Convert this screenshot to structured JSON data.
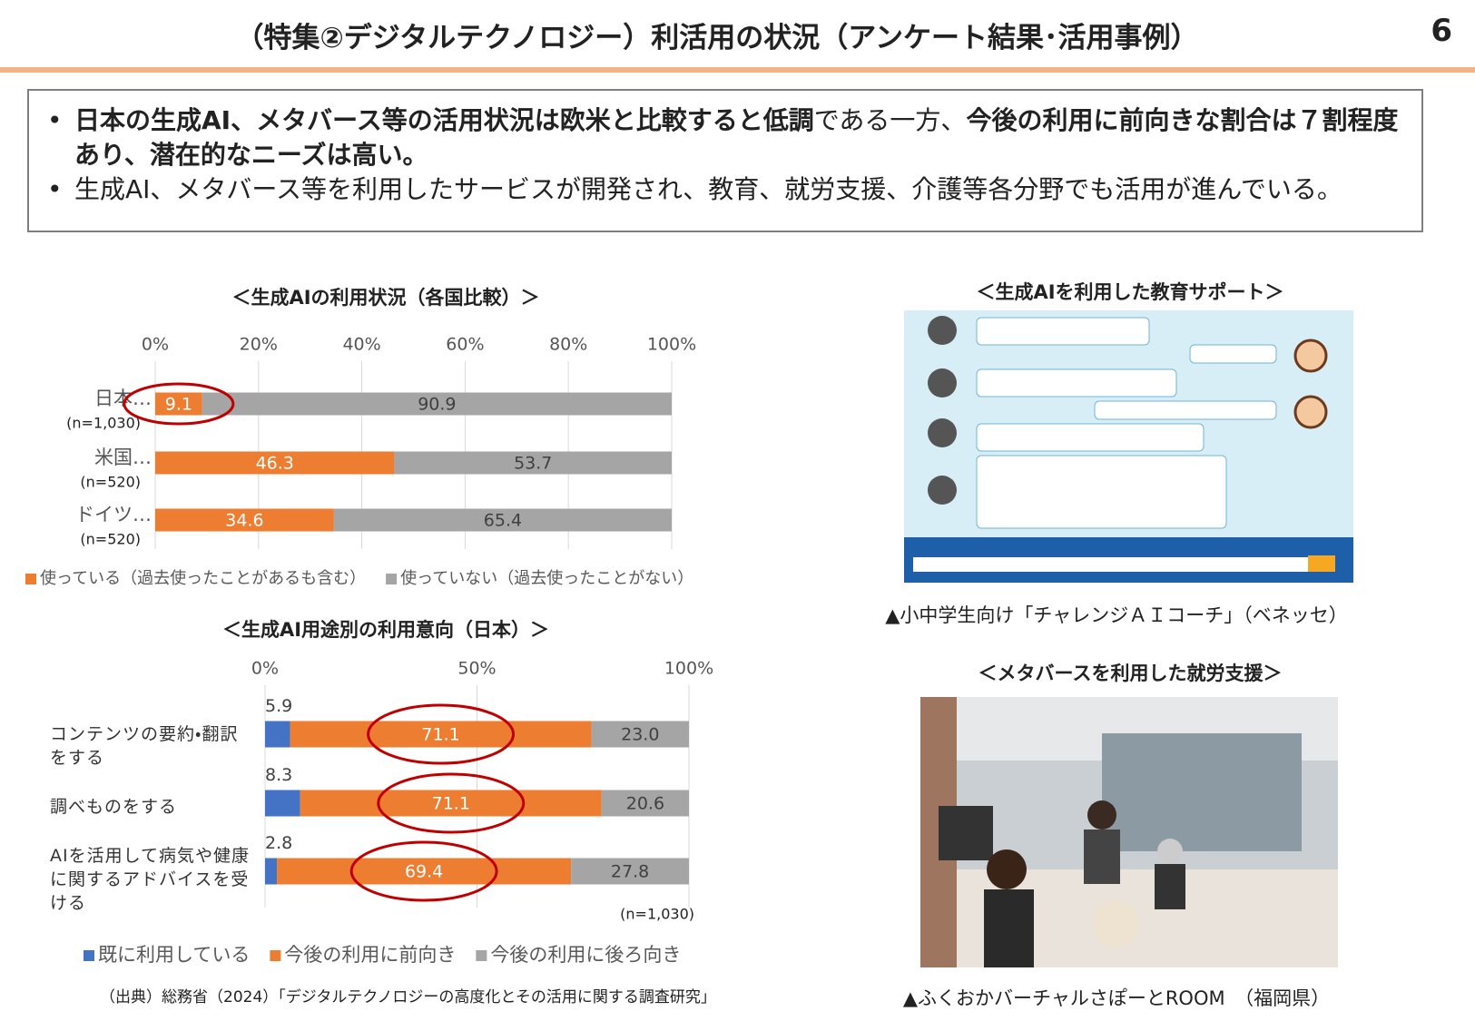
{
  "header": {
    "title": "（特集②デジタルテクノロジー）利活用の状況（アンケート結果･活用事例）",
    "page_number": "6"
  },
  "summary": {
    "bullets": [
      [
        {
          "text": "日本の生成AI、メタバース等の活用状況は欧米と比較すると低調",
          "bold": true
        },
        {
          "text": "である一方、",
          "bold": false
        },
        {
          "text": "今後の利用に前向きな割合は７割程度あり、潜在的なニーズは高い。",
          "bold": true
        }
      ],
      [
        {
          "text": "生成AI、メタバース等を利用したサービスが開発され、教育、就労支援、介護等各分野でも活用が進んでいる。",
          "bold": false
        }
      ]
    ]
  },
  "chart_data": [
    {
      "type": "stacked-hbar",
      "title": "＜生成AIの利用状況（各国比較）＞",
      "categories": [
        "日本…",
        "米国…",
        "ドイツ…"
      ],
      "sample_sizes": [
        "(n=1,030)",
        "(n=520)",
        "(n=520)"
      ],
      "series": [
        {
          "name": "使っている（過去使ったことがあるも含む）",
          "color": "#ed7d31",
          "values": [
            9.1,
            46.3,
            34.6
          ]
        },
        {
          "name": "使っていない（過去使ったことがない）",
          "color": "#a5a5a5",
          "values": [
            90.9,
            53.7,
            65.4
          ]
        }
      ],
      "xlim": [
        0,
        100
      ],
      "xticks": [
        {
          "value": 0,
          "label": "0%"
        },
        {
          "value": 20,
          "label": "20%"
        },
        {
          "value": 40,
          "label": "40%"
        },
        {
          "value": 60,
          "label": "60%"
        },
        {
          "value": 80,
          "label": "80%"
        },
        {
          "value": 100,
          "label": "100%"
        }
      ],
      "grid": true
    },
    {
      "type": "stacked-hbar",
      "title": "＜生成AI用途別の利用意向（日本）＞",
      "categories": [
        "コンテンツの要約・翻訳をする",
        "調べものをする",
        "AIを活用して病気や健康に関するアドバイスを受ける"
      ],
      "series": [
        {
          "name": "既に利用している",
          "color": "#4472c4",
          "values": [
            5.9,
            8.3,
            2.8
          ]
        },
        {
          "name": "今後の利用に前向き",
          "color": "#ed7d31",
          "values": [
            71.1,
            71.1,
            69.4
          ]
        },
        {
          "name": "今後の利用に後ろ向き",
          "color": "#a5a5a5",
          "values": [
            23.0,
            20.6,
            27.8
          ],
          "value_labels": [
            "23.0",
            "20.6",
            "27.8"
          ]
        }
      ],
      "note": "(n=1,030)",
      "xlim": [
        0,
        100
      ],
      "xticks": [
        {
          "value": 0,
          "label": "0%"
        },
        {
          "value": 50,
          "label": "50%"
        },
        {
          "value": 100,
          "label": "100%"
        }
      ],
      "grid": true
    }
  ],
  "source": "（出典）総務省（2024）「デジタルテクノロジーの高度化とその活用に関する調査研究」",
  "examples": [
    {
      "title": "＜生成AIを利用した教育サポート＞",
      "caption": "▲小中学生向け「チャレンジＡＩコーチ」（ベネッセ）"
    },
    {
      "title": "＜メタバースを利用した就労支援＞",
      "caption": "▲ふくおかバーチャルさぽーとROOM　（福岡県）"
    }
  ]
}
